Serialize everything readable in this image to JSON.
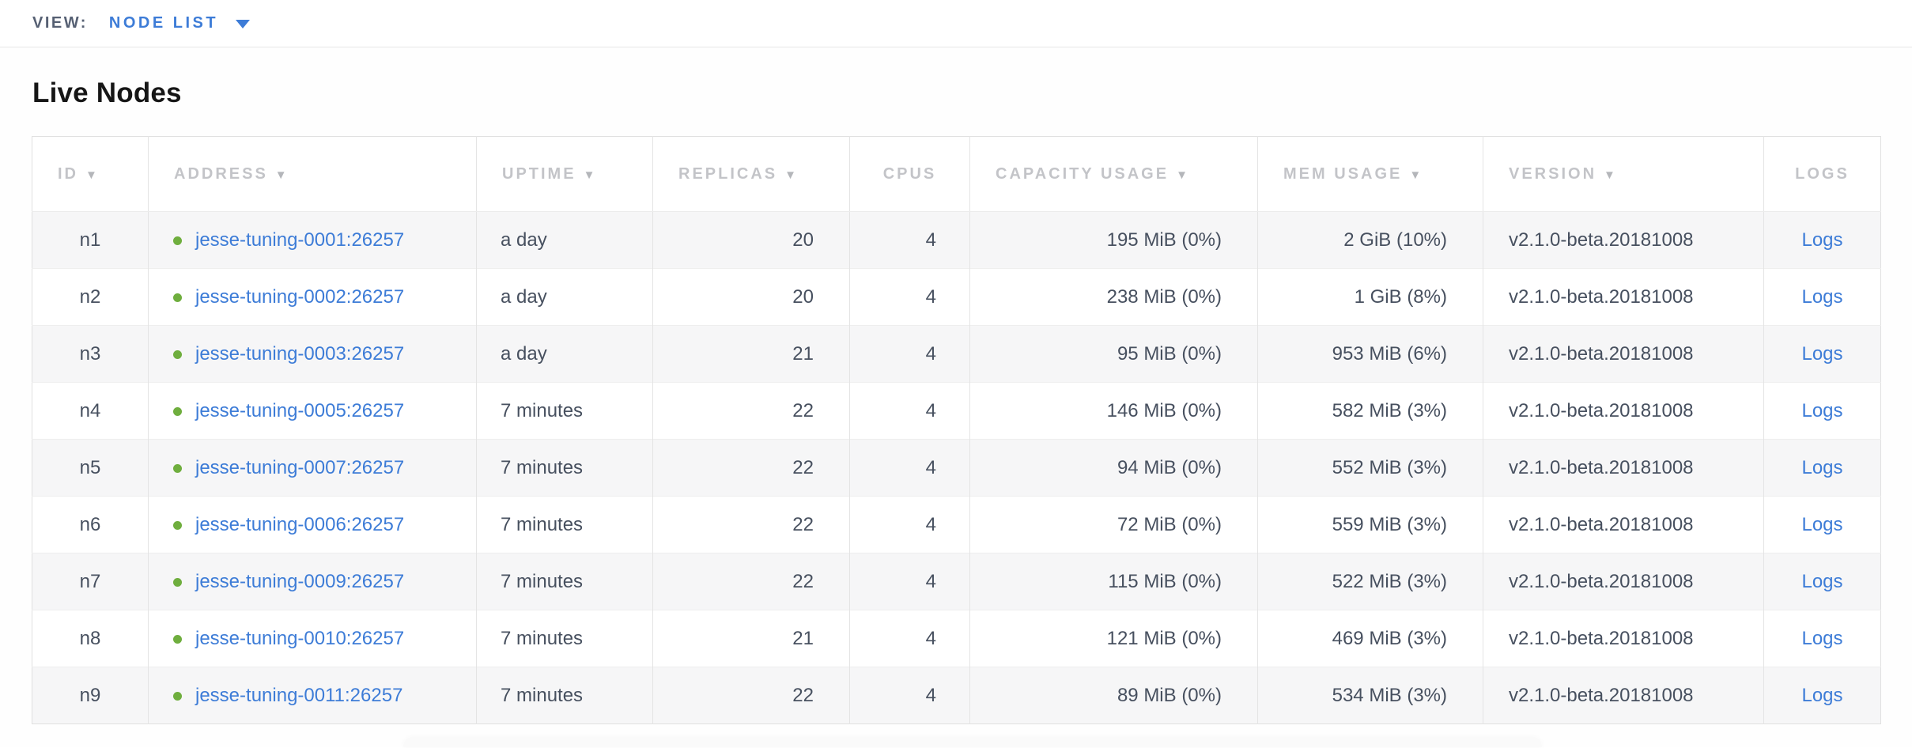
{
  "view_bar": {
    "label": "VIEW:",
    "selected_view": "NODE LIST"
  },
  "page": {
    "title": "Live Nodes"
  },
  "icons": {
    "sort_arrow": "▼",
    "status_dot": "green-circle",
    "dropdown_caret": "down-triangle"
  },
  "colors": {
    "link_blue": "#3d7cd7",
    "status_green": "#6fae3e",
    "header_gray": "#c3c4c8",
    "cell_text": "#47505f",
    "row_stripe": "#f6f6f7"
  },
  "table": {
    "logs_link_label": "Logs",
    "columns": [
      {
        "key": "id",
        "label": "ID",
        "sortable": true
      },
      {
        "key": "address",
        "label": "ADDRESS",
        "sortable": true
      },
      {
        "key": "uptime",
        "label": "UPTIME",
        "sortable": true
      },
      {
        "key": "replicas",
        "label": "REPLICAS",
        "sortable": true
      },
      {
        "key": "cpus",
        "label": "CPUS",
        "sortable": false
      },
      {
        "key": "capacity",
        "label": "CAPACITY USAGE",
        "sortable": true
      },
      {
        "key": "mem",
        "label": "MEM USAGE",
        "sortable": true
      },
      {
        "key": "version",
        "label": "VERSION",
        "sortable": true
      },
      {
        "key": "logs",
        "label": "LOGS",
        "sortable": false
      }
    ],
    "rows": [
      {
        "id": "n1",
        "address": "jesse-tuning-0001:26257",
        "uptime": "a day",
        "replicas": "20",
        "cpus": "4",
        "capacity": "195 MiB (0%)",
        "mem": "2 GiB (10%)",
        "version": "v2.1.0-beta.20181008"
      },
      {
        "id": "n2",
        "address": "jesse-tuning-0002:26257",
        "uptime": "a day",
        "replicas": "20",
        "cpus": "4",
        "capacity": "238 MiB (0%)",
        "mem": "1 GiB (8%)",
        "version": "v2.1.0-beta.20181008"
      },
      {
        "id": "n3",
        "address": "jesse-tuning-0003:26257",
        "uptime": "a day",
        "replicas": "21",
        "cpus": "4",
        "capacity": "95 MiB (0%)",
        "mem": "953 MiB (6%)",
        "version": "v2.1.0-beta.20181008"
      },
      {
        "id": "n4",
        "address": "jesse-tuning-0005:26257",
        "uptime": "7 minutes",
        "replicas": "22",
        "cpus": "4",
        "capacity": "146 MiB (0%)",
        "mem": "582 MiB (3%)",
        "version": "v2.1.0-beta.20181008"
      },
      {
        "id": "n5",
        "address": "jesse-tuning-0007:26257",
        "uptime": "7 minutes",
        "replicas": "22",
        "cpus": "4",
        "capacity": "94 MiB (0%)",
        "mem": "552 MiB (3%)",
        "version": "v2.1.0-beta.20181008"
      },
      {
        "id": "n6",
        "address": "jesse-tuning-0006:26257",
        "uptime": "7 minutes",
        "replicas": "22",
        "cpus": "4",
        "capacity": "72 MiB (0%)",
        "mem": "559 MiB (3%)",
        "version": "v2.1.0-beta.20181008"
      },
      {
        "id": "n7",
        "address": "jesse-tuning-0009:26257",
        "uptime": "7 minutes",
        "replicas": "22",
        "cpus": "4",
        "capacity": "115 MiB (0%)",
        "mem": "522 MiB (3%)",
        "version": "v2.1.0-beta.20181008"
      },
      {
        "id": "n8",
        "address": "jesse-tuning-0010:26257",
        "uptime": "7 minutes",
        "replicas": "21",
        "cpus": "4",
        "capacity": "121 MiB (0%)",
        "mem": "469 MiB (3%)",
        "version": "v2.1.0-beta.20181008"
      },
      {
        "id": "n9",
        "address": "jesse-tuning-0011:26257",
        "uptime": "7 minutes",
        "replicas": "22",
        "cpus": "4",
        "capacity": "89 MiB (0%)",
        "mem": "534 MiB (3%)",
        "version": "v2.1.0-beta.20181008"
      }
    ]
  }
}
